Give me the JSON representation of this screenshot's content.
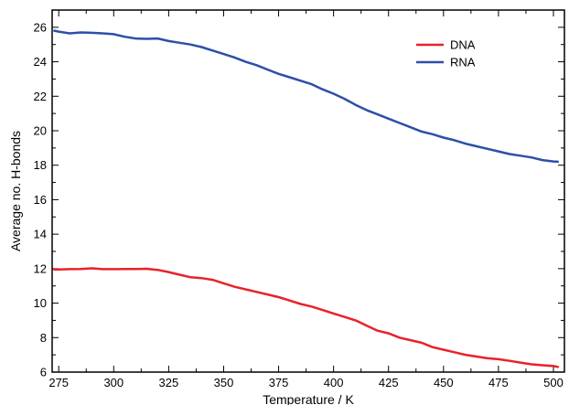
{
  "chart_data": {
    "type": "line",
    "xlabel": "Temperature / K",
    "ylabel": "Average no. H-bonds",
    "xlim": [
      272,
      505
    ],
    "ylim": [
      6,
      27
    ],
    "xticks": [
      275,
      300,
      325,
      350,
      375,
      400,
      425,
      450,
      475,
      500
    ],
    "yticks": [
      6,
      8,
      10,
      12,
      14,
      16,
      18,
      20,
      22,
      24,
      26
    ],
    "grid": false,
    "legend_position": "top-right",
    "series": [
      {
        "name": "DNA",
        "color": "#e8222a",
        "x": [
          273,
          275,
          280,
          285,
          290,
          295,
          300,
          305,
          310,
          315,
          320,
          325,
          330,
          335,
          340,
          345,
          350,
          355,
          360,
          365,
          370,
          375,
          380,
          385,
          390,
          395,
          400,
          405,
          410,
          415,
          420,
          425,
          430,
          435,
          440,
          445,
          450,
          455,
          460,
          465,
          470,
          475,
          480,
          485,
          490,
          495,
          500,
          502
        ],
        "y": [
          11.95,
          11.95,
          11.97,
          11.98,
          12.02,
          11.97,
          11.97,
          11.98,
          11.98,
          11.99,
          11.93,
          11.8,
          11.65,
          11.5,
          11.45,
          11.35,
          11.15,
          10.95,
          10.8,
          10.65,
          10.5,
          10.35,
          10.15,
          9.95,
          9.8,
          9.6,
          9.4,
          9.2,
          9.0,
          8.7,
          8.4,
          8.25,
          8.0,
          7.85,
          7.7,
          7.45,
          7.3,
          7.15,
          7.0,
          6.9,
          6.8,
          6.75,
          6.65,
          6.55,
          6.45,
          6.4,
          6.35,
          6.3
        ]
      },
      {
        "name": "RNA",
        "color": "#2e4fa8",
        "x": [
          273,
          275,
          280,
          285,
          290,
          295,
          300,
          305,
          310,
          315,
          320,
          325,
          330,
          335,
          340,
          345,
          350,
          355,
          360,
          365,
          370,
          375,
          380,
          385,
          390,
          395,
          400,
          405,
          410,
          415,
          420,
          425,
          430,
          435,
          440,
          445,
          450,
          455,
          460,
          465,
          470,
          475,
          480,
          485,
          490,
          495,
          500,
          502
        ],
        "y": [
          25.8,
          25.75,
          25.65,
          25.7,
          25.68,
          25.65,
          25.6,
          25.45,
          25.35,
          25.33,
          25.35,
          25.2,
          25.1,
          25.0,
          24.85,
          24.65,
          24.45,
          24.25,
          24.0,
          23.8,
          23.55,
          23.3,
          23.1,
          22.9,
          22.7,
          22.4,
          22.15,
          21.85,
          21.5,
          21.2,
          20.95,
          20.7,
          20.45,
          20.2,
          19.95,
          19.8,
          19.6,
          19.45,
          19.25,
          19.1,
          18.95,
          18.8,
          18.65,
          18.55,
          18.45,
          18.3,
          18.22,
          18.2
        ]
      }
    ]
  }
}
